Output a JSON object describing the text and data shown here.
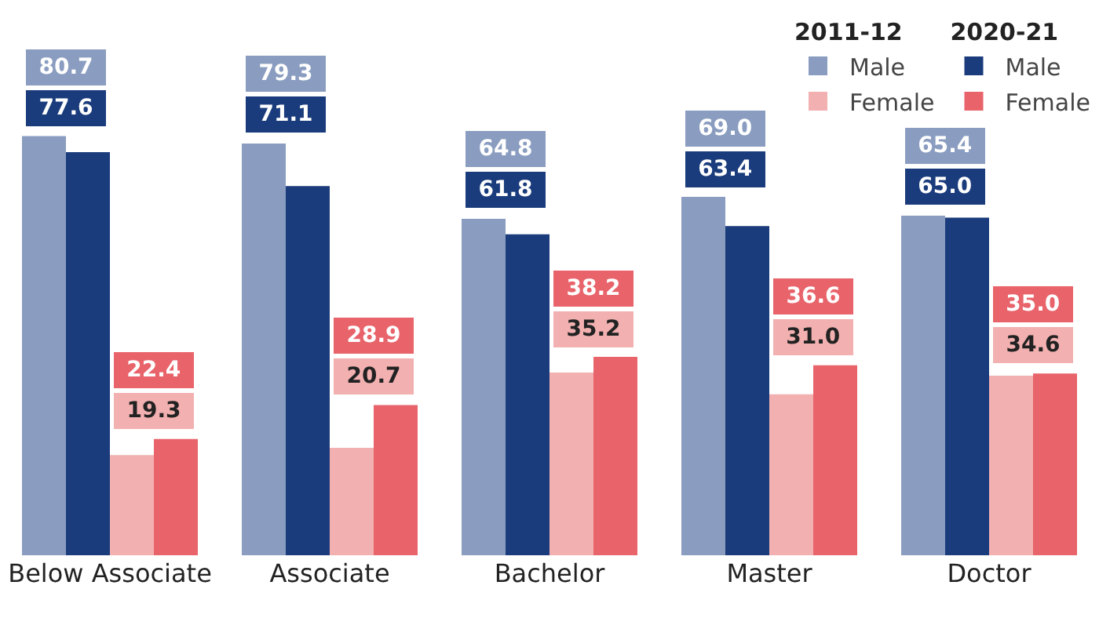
{
  "chart_data": {
    "type": "bar",
    "categories": [
      "Below Associate",
      "Associate",
      "Bachelor",
      "Master",
      "Doctor"
    ],
    "series": [
      {
        "name": "Male",
        "color": "#8a9dc0",
        "values": [
          80.7,
          79.3,
          64.8,
          69.0,
          65.4
        ],
        "value_labels": [
          "80.7",
          "79.3",
          "64.8",
          "69.0",
          "65.4"
        ]
      },
      {
        "name": "Male",
        "color": "#1b3c7c",
        "values": [
          77.6,
          71.1,
          61.8,
          63.4,
          65.0
        ],
        "value_labels": [
          "77.6",
          "71.1",
          "61.8",
          "63.4",
          "65.0"
        ]
      },
      {
        "name": "Female",
        "color": "#f2b0b0",
        "values": [
          19.3,
          20.7,
          35.2,
          31.0,
          34.6
        ],
        "value_labels": [
          "19.3",
          "20.7",
          "35.2",
          "31.0",
          "34.6"
        ]
      },
      {
        "name": "Female",
        "color": "#e8636a",
        "values": [
          22.4,
          28.9,
          38.2,
          36.6,
          35.0
        ],
        "value_labels": [
          "22.4",
          "28.9",
          "38.2",
          "36.6",
          "35.0"
        ]
      }
    ],
    "annotations": [
      "2011-12",
      "2020-21"
    ],
    "legend": "top right",
    "grid": false
  }
}
